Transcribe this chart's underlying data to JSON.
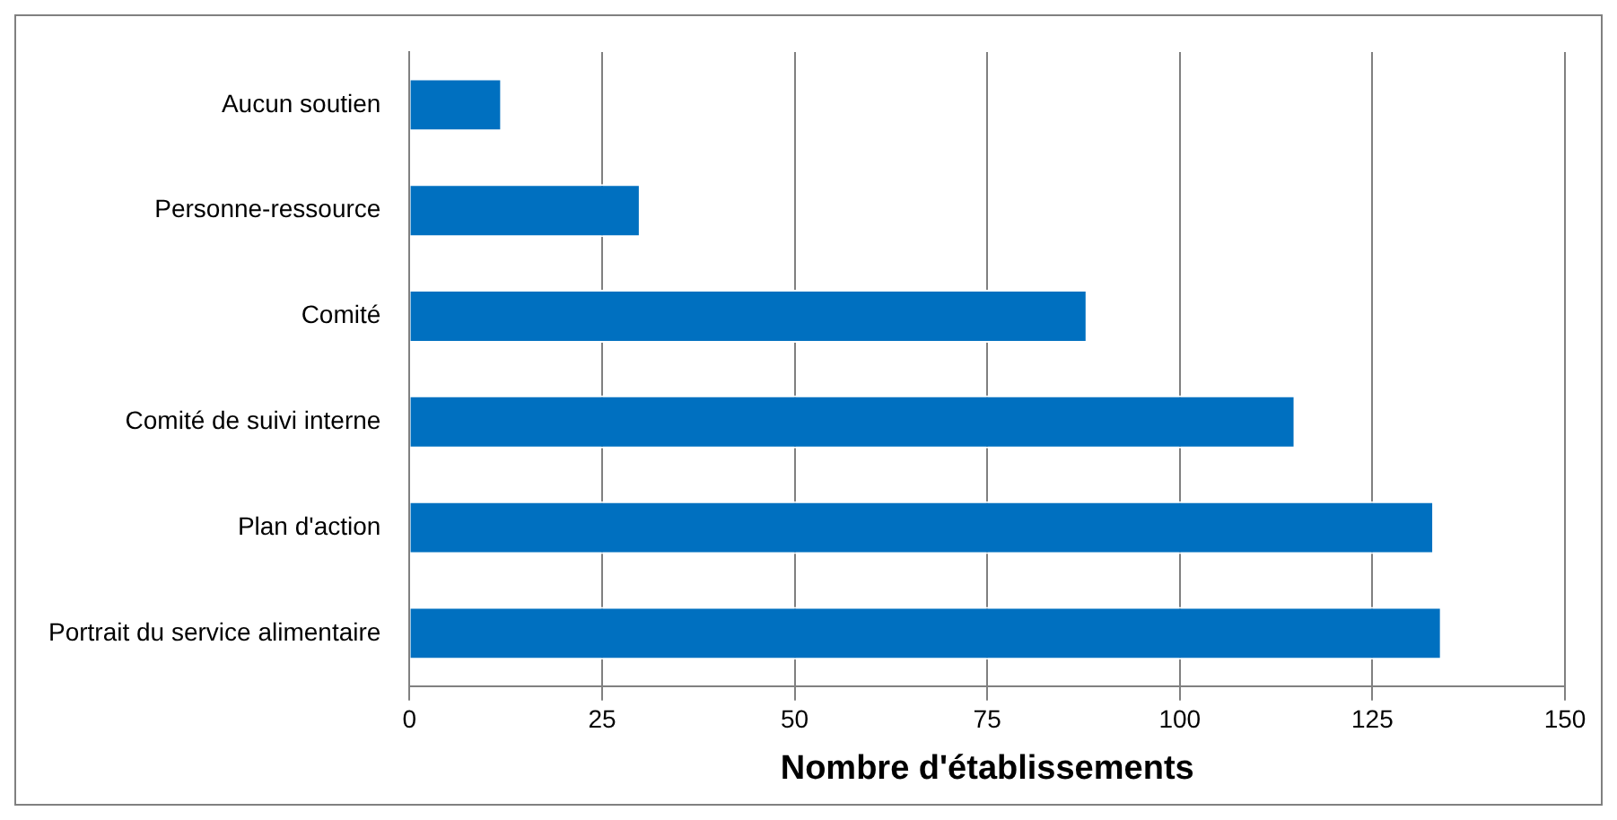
{
  "chart_data": {
    "type": "bar",
    "orientation": "horizontal",
    "xlabel": "Nombre d'établissements",
    "categories": [
      "Aucun soutien",
      "Personne-ressource",
      "Comité",
      "Comité de suivi interne",
      "Plan d'action",
      "Portrait du service alimentaire"
    ],
    "values": [
      12,
      30,
      88,
      115,
      133,
      134
    ],
    "color": "#0070c0",
    "xlim": [
      0,
      150
    ],
    "xticks": [
      0,
      25,
      50,
      75,
      100,
      125,
      150
    ],
    "grid": "x",
    "legend": false
  }
}
